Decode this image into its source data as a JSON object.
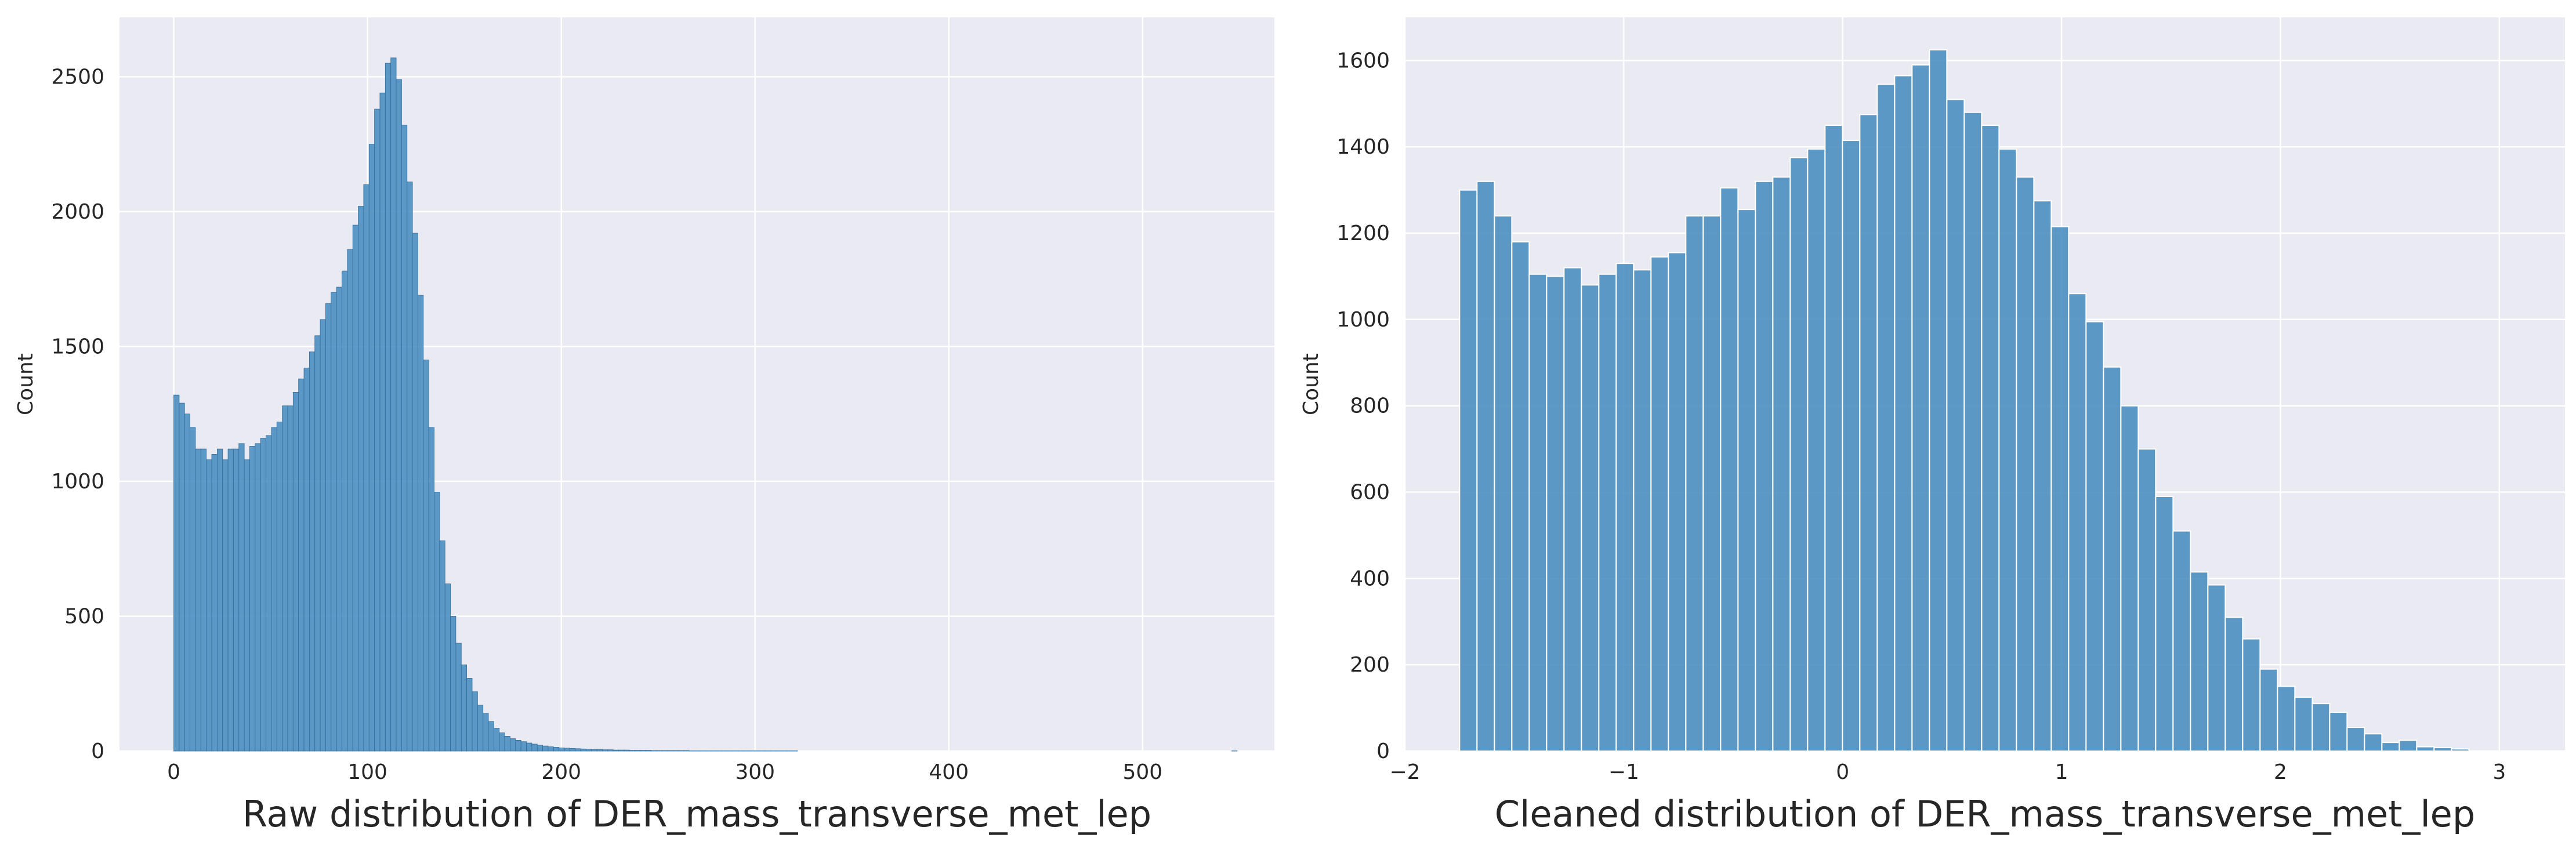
{
  "colors": {
    "background": "#eaeaf2",
    "grid": "#ffffff",
    "bar": "#4c8fc0",
    "bar_edge": "#2f6e9e",
    "text": "#262626"
  },
  "chart_data": [
    {
      "type": "bar",
      "subtype": "histogram",
      "xlabel": "Raw distribution of DER_mass_transverse_met_lep",
      "ylabel": "Count",
      "xlim": [
        -28,
        568
      ],
      "ylim": [
        0,
        2720
      ],
      "xticks": [
        0,
        100,
        200,
        300,
        400,
        500
      ],
      "yticks": [
        0,
        500,
        1000,
        1500,
        2000,
        2500
      ],
      "grid": true,
      "bin_start": 0,
      "bin_width": 2.8,
      "values": [
        1320,
        1290,
        1250,
        1200,
        1120,
        1120,
        1080,
        1100,
        1120,
        1080,
        1120,
        1120,
        1140,
        1080,
        1130,
        1140,
        1160,
        1170,
        1200,
        1220,
        1280,
        1280,
        1330,
        1380,
        1420,
        1480,
        1540,
        1600,
        1660,
        1700,
        1720,
        1780,
        1860,
        1950,
        2020,
        2100,
        2250,
        2380,
        2440,
        2550,
        2570,
        2490,
        2320,
        2110,
        1920,
        1690,
        1450,
        1200,
        960,
        780,
        620,
        500,
        400,
        320,
        270,
        220,
        170,
        140,
        110,
        85,
        68,
        55,
        46,
        40,
        35,
        30,
        26,
        22,
        19,
        16,
        14,
        12,
        11,
        10,
        9,
        8,
        7,
        6,
        6,
        5,
        5,
        4,
        4,
        4,
        3,
        3,
        3,
        3,
        2,
        2,
        2,
        2,
        2,
        2,
        2,
        1,
        1,
        1,
        1,
        1,
        1,
        1,
        1,
        1,
        1,
        1,
        1,
        1,
        1,
        1,
        1,
        1,
        1,
        1,
        1,
        0,
        0,
        0,
        0,
        0,
        0,
        0,
        0,
        0,
        0,
        0,
        0,
        0,
        0,
        0,
        0,
        0,
        0,
        0,
        0,
        0,
        0,
        0,
        0,
        0,
        0,
        0,
        0,
        0,
        0,
        0,
        0,
        0,
        0,
        0,
        0,
        0,
        0,
        0,
        0,
        0,
        0,
        0,
        0,
        0,
        0,
        0,
        0,
        0,
        0,
        0,
        0,
        0,
        0,
        0,
        0,
        0,
        0,
        0,
        0,
        0,
        0,
        0,
        0,
        0,
        0,
        0,
        0,
        0,
        0,
        0,
        0,
        0,
        0,
        0,
        0,
        0,
        0,
        0,
        0,
        1
      ]
    },
    {
      "type": "bar",
      "subtype": "histogram",
      "xlabel": "Cleaned distribution of DER_mass_transverse_met_lep",
      "ylabel": "Count",
      "xlim": [
        -2,
        3.3
      ],
      "ylim": [
        0,
        1700
      ],
      "xticks": [
        -2,
        -1,
        0,
        1,
        2,
        3
      ],
      "xtick_labels": [
        "−2",
        "−1",
        "0",
        "1",
        "2",
        "3"
      ],
      "yticks": [
        0,
        200,
        400,
        600,
        800,
        1000,
        1200,
        1400,
        1600
      ],
      "grid": true,
      "bin_start": -1.75,
      "bin_width": 0.0795,
      "values": [
        1300,
        1320,
        1240,
        1180,
        1105,
        1100,
        1120,
        1080,
        1105,
        1130,
        1115,
        1145,
        1155,
        1240,
        1240,
        1305,
        1255,
        1320,
        1330,
        1375,
        1395,
        1450,
        1415,
        1475,
        1545,
        1565,
        1590,
        1625,
        1510,
        1480,
        1450,
        1395,
        1330,
        1275,
        1215,
        1060,
        995,
        890,
        800,
        700,
        590,
        510,
        415,
        385,
        310,
        260,
        190,
        150,
        125,
        110,
        90,
        55,
        40,
        20,
        25,
        10,
        8,
        5
      ]
    }
  ]
}
